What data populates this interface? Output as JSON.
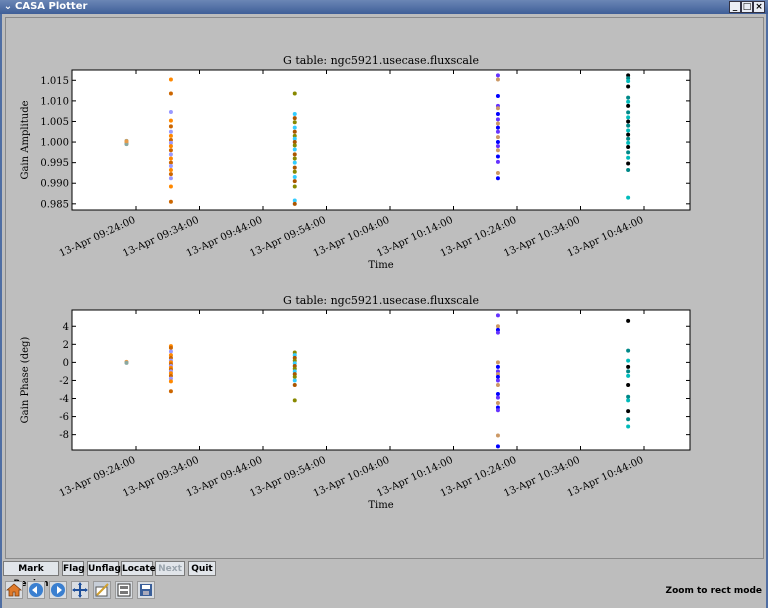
{
  "window": {
    "title": "CASA Plotter",
    "buttons": [
      "minimize",
      "maximize",
      "close"
    ]
  },
  "toolbar_buttons": [
    {
      "label": "Mark Region",
      "enabled": true
    },
    {
      "label": "Flag",
      "enabled": true
    },
    {
      "label": "Unflag",
      "enabled": true
    },
    {
      "label": "Locate",
      "enabled": true
    },
    {
      "label": "Next",
      "enabled": false
    },
    {
      "label": "Quit",
      "enabled": true
    }
  ],
  "nav_icons": [
    "home-icon",
    "back-icon",
    "forward-icon",
    "pan-icon",
    "zoom-icon",
    "subplots-icon",
    "save-icon"
  ],
  "status": "Zoom to rect mode",
  "chart_data": [
    {
      "type": "scatter",
      "title": "G table: ngc5921.usecase.fluxscale",
      "xlabel": "Time",
      "ylabel": "Gain Amplitude",
      "xticks": [
        "13-Apr 09:24:00",
        "13-Apr 09:34:00",
        "13-Apr 09:44:00",
        "13-Apr 09:54:00",
        "13-Apr 10:04:00",
        "13-Apr 10:14:00",
        "13-Apr 10:24:00",
        "13-Apr 10:34:00",
        "13-Apr 10:44:00"
      ],
      "yticks": [
        "0.985",
        "0.990",
        "0.995",
        "1.000",
        "1.005",
        "1.010",
        "1.015"
      ],
      "ylim": [
        0.9835,
        1.0175
      ],
      "x_times": [
        "09:22:30",
        "09:29:30",
        "09:49:00",
        "10:21:00",
        "10:41:30"
      ],
      "y_groups": [
        [
          0.9995,
          1.0,
          1.0003,
          0.9998,
          0.9996,
          1.0002
        ],
        [
          1.0152,
          1.0118,
          1.0073,
          1.0052,
          1.0038,
          1.0025,
          1.0015,
          1.0005,
          0.9998,
          0.999,
          0.998,
          0.997,
          0.996,
          0.995,
          0.9942,
          0.9932,
          0.9922,
          0.9912,
          0.9892,
          0.9855
        ],
        [
          1.0118,
          1.0068,
          1.0058,
          1.0048,
          1.0035,
          1.0025,
          1.0015,
          1.0008,
          1.0,
          0.9992,
          0.9982,
          0.997,
          0.996,
          0.995,
          0.9938,
          0.9928,
          0.9915,
          0.9905,
          0.9892,
          0.9858,
          0.985
        ],
        [
          1.0162,
          1.0152,
          1.0112,
          1.0088,
          1.0082,
          1.0068,
          1.0055,
          1.0045,
          1.0035,
          1.0025,
          1.0012,
          1.0,
          0.999,
          0.998,
          0.9965,
          0.9952,
          0.9925,
          0.9912
        ],
        [
          1.0162,
          1.0155,
          1.0148,
          1.0135,
          1.0108,
          1.0098,
          1.0088,
          1.0072,
          1.006,
          1.005,
          1.004,
          1.0028,
          1.0018,
          1.0008,
          0.9998,
          0.9988,
          0.9975,
          0.9962,
          0.9948,
          0.9932,
          0.9865
        ]
      ]
    },
    {
      "type": "scatter",
      "title": "G table: ngc5921.usecase.fluxscale",
      "xlabel": "Time",
      "ylabel": "Gain Phase (deg)",
      "xticks": [
        "13-Apr 09:24:00",
        "13-Apr 09:34:00",
        "13-Apr 09:44:00",
        "13-Apr 09:54:00",
        "13-Apr 10:04:00",
        "13-Apr 10:14:00",
        "13-Apr 10:24:00",
        "13-Apr 10:34:00",
        "13-Apr 10:44:00"
      ],
      "yticks": [
        "-8",
        "-6",
        "-4",
        "-2",
        "0",
        "2",
        "4"
      ],
      "ylim": [
        -9.7,
        5.8
      ],
      "x_times": [
        "09:22:30",
        "09:29:30",
        "09:49:00",
        "10:21:00",
        "10:41:30"
      ],
      "y_groups": [
        [
          0.0,
          0.05,
          -0.05
        ],
        [
          1.8,
          1.6,
          1.2,
          0.8,
          0.5,
          0.2,
          0.0,
          -0.2,
          -0.4,
          -0.6,
          -0.8,
          -1.0,
          -1.2,
          -1.5,
          -1.8,
          -2.1,
          -3.2
        ],
        [
          1.1,
          0.8,
          0.5,
          0.2,
          -0.1,
          -0.4,
          -0.7,
          -1.0,
          -1.3,
          -1.6,
          -2.0,
          -2.5,
          -4.2
        ],
        [
          5.2,
          4.0,
          3.6,
          3.3,
          0.0,
          -0.5,
          -1.0,
          -1.3,
          -1.6,
          -2.0,
          -2.5,
          -3.5,
          -3.9,
          -4.5,
          -5.0,
          -5.3,
          -8.1,
          -9.3
        ],
        [
          4.6,
          1.3,
          0.2,
          -0.5,
          -1.0,
          -1.5,
          -2.5,
          -3.8,
          -4.2,
          -5.4,
          -6.3,
          -7.1
        ]
      ]
    }
  ]
}
